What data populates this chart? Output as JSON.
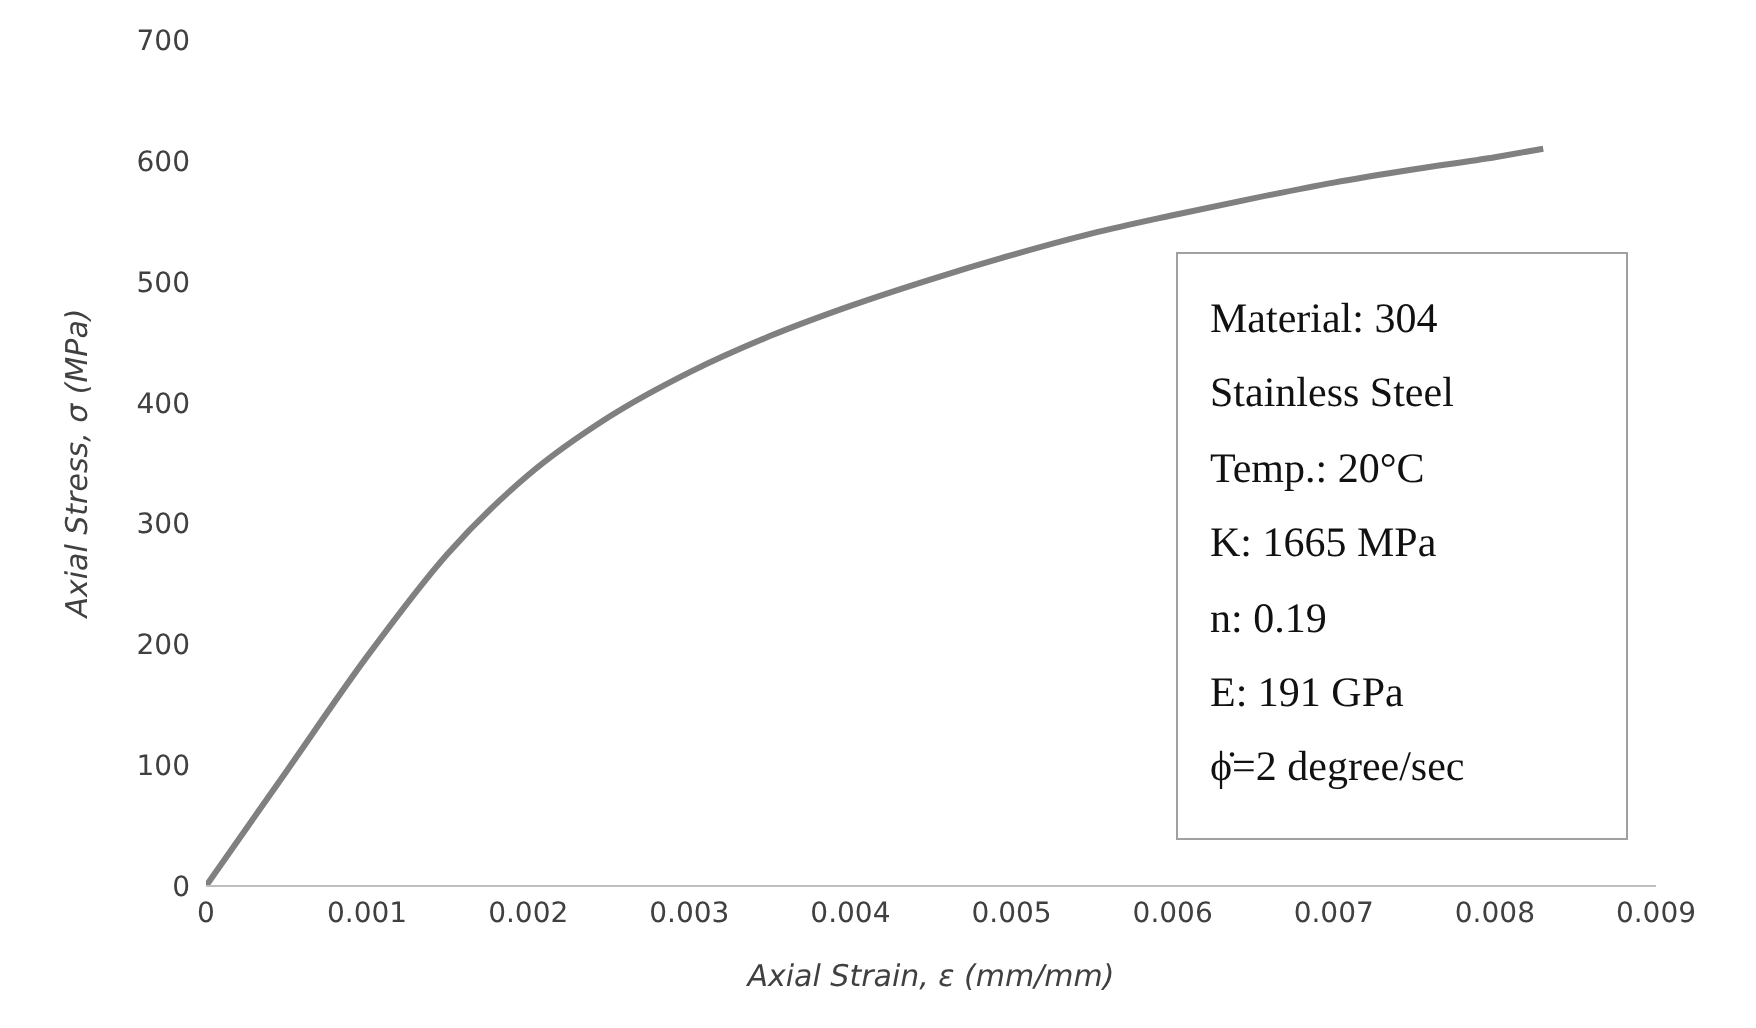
{
  "chart_data": {
    "type": "line",
    "xlabel": "Axial Strain, ε (mm/mm)",
    "ylabel": "Axial Stress, σ (MPa)",
    "x": [
      0,
      0.0005,
      0.001,
      0.0015,
      0.002,
      0.0025,
      0.003,
      0.0035,
      0.004,
      0.0045,
      0.005,
      0.0055,
      0.006,
      0.0065,
      0.007,
      0.0075,
      0.008,
      0.0083
    ],
    "series": [
      {
        "color": "#808080",
        "values": [
          0,
          95,
          190,
          275,
          340,
          388,
          425,
          455,
          480,
          502,
          522,
          540,
          555,
          569,
          582,
          593,
          603,
          610
        ]
      }
    ],
    "xlim": [
      0,
      0.009
    ],
    "xticks": [
      0,
      0.001,
      0.002,
      0.003,
      0.004,
      0.005,
      0.006,
      0.007,
      0.008,
      0.009
    ],
    "ylim": [
      0,
      700
    ],
    "yticks": [
      0,
      100,
      200,
      300,
      400,
      500,
      600,
      700
    ],
    "grid": false,
    "legend": false,
    "marker": "none",
    "line_style": "solid",
    "annotations": [
      "Material:  304",
      "Stainless Steel",
      "Temp.: 20°C",
      "K: 1665 MPa",
      "n: 0.19",
      "E: 191 GPa",
      "ϕ̇=2 degree/sec"
    ]
  }
}
